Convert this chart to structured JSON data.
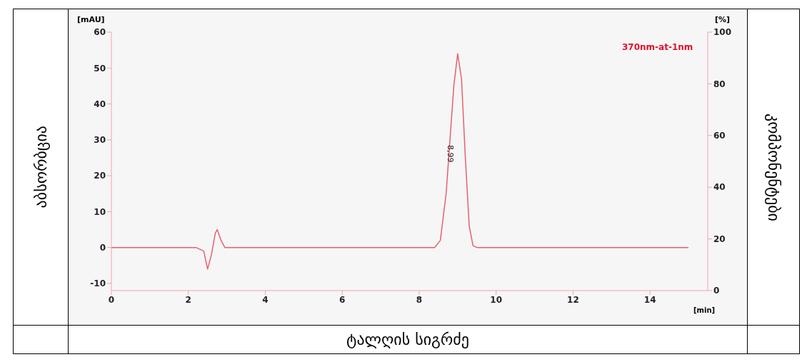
{
  "chart_data": {
    "type": "line",
    "xlabel": "ტალღის სიგრძე",
    "ylabel": "აბსორბცია",
    "y2label": "კომპონენტები",
    "annotations": [
      "[mAU]",
      "[%]",
      "[min]",
      "370nm-at-1nm",
      "8,99"
    ],
    "x": [
      0,
      2.2,
      2.4,
      2.5,
      2.6,
      2.7,
      2.75,
      2.85,
      2.95,
      8.4,
      8.55,
      8.7,
      8.8,
      8.9,
      9.0,
      9.1,
      9.2,
      9.3,
      9.4,
      9.5,
      15.0
    ],
    "series": [
      {
        "color": "#e8606f",
        "values": [
          0,
          0,
          -1,
          -6,
          -2,
          4,
          5,
          2,
          0,
          0,
          2,
          15,
          30,
          45,
          54,
          47,
          25,
          6,
          0.5,
          0,
          0
        ]
      }
    ],
    "xlim": [
      0,
      15.5
    ],
    "xticks": [
      0,
      2,
      4,
      6,
      8,
      10,
      12,
      14
    ],
    "ylim": [
      -12,
      60
    ],
    "yticks": [
      -10,
      0,
      10,
      20,
      30,
      40,
      50,
      60
    ],
    "y2lim": [
      0,
      100
    ],
    "y2ticks": [
      0,
      20,
      40,
      60,
      80,
      100
    ],
    "marker": "none",
    "line_style": "solid"
  }
}
